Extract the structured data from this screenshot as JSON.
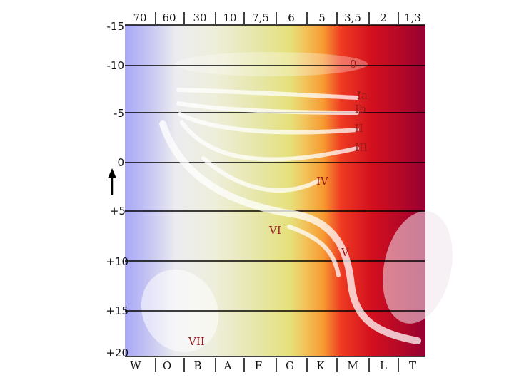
{
  "diagram": {
    "temperature_labels": [
      "70",
      "60",
      "30",
      "10",
      "7,5",
      "6",
      "5",
      "3,5",
      "2",
      "1,3"
    ],
    "spectral_classes": [
      "W",
      "O",
      "B",
      "A",
      "F",
      "G",
      "K",
      "M",
      "L",
      "T"
    ],
    "magnitude_labels": [
      "-15",
      "-10",
      "-5",
      "0",
      "+5",
      "+10",
      "+15",
      "+20"
    ],
    "luminosity_classes": {
      "zero": "0",
      "ia": "Ia",
      "ib": "Ib",
      "ii": "II",
      "iii": "III",
      "iv": "IV",
      "vi": "VI",
      "v": "V",
      "vii": "VII"
    }
  }
}
